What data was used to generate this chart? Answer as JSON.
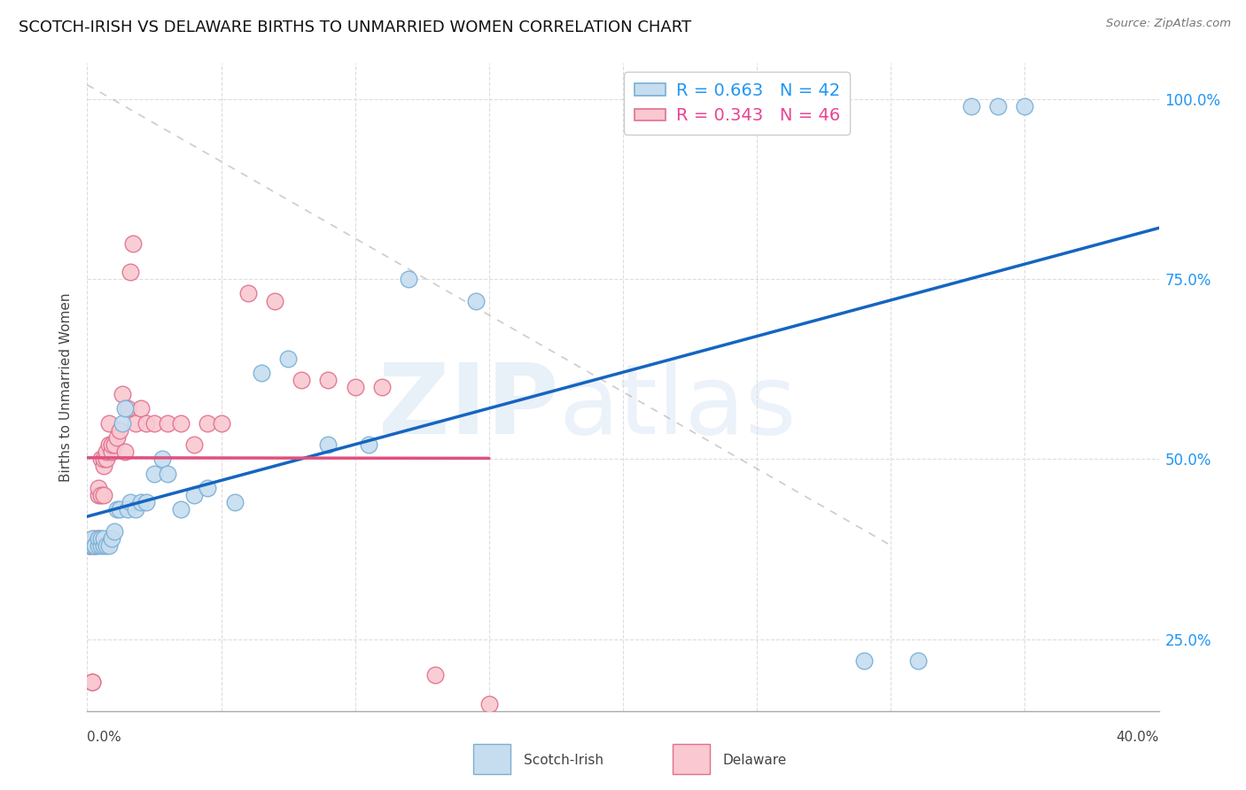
{
  "title": "SCOTCH-IRISH VS DELAWARE BIRTHS TO UNMARRIED WOMEN CORRELATION CHART",
  "source": "Source: ZipAtlas.com",
  "ylabel": "Births to Unmarried Women",
  "xlim": [
    0.0,
    0.4
  ],
  "ylim": [
    0.15,
    1.05
  ],
  "yticks": [
    0.25,
    0.5,
    0.75,
    1.0
  ],
  "ytick_labels": [
    "25.0%",
    "50.0%",
    "75.0%",
    "100.0%"
  ],
  "xticks": [
    0.0,
    0.05,
    0.1,
    0.15,
    0.2,
    0.25,
    0.3,
    0.35,
    0.4
  ],
  "legend_blue_r": "R = 0.663",
  "legend_blue_n": "N = 42",
  "legend_pink_r": "R = 0.343",
  "legend_pink_n": "N = 46",
  "legend_label_blue": "Scotch-Irish",
  "legend_label_pink": "Delaware",
  "blue_face": "#c6ddf0",
  "blue_edge": "#7aafd4",
  "blue_line": "#1565C0",
  "pink_face": "#f9c8d0",
  "pink_edge": "#e07090",
  "pink_line": "#e05080",
  "grid_color": "#dddddd",
  "scotch_irish_x": [
    0.001,
    0.002,
    0.002,
    0.003,
    0.003,
    0.004,
    0.004,
    0.005,
    0.005,
    0.006,
    0.006,
    0.007,
    0.008,
    0.009,
    0.01,
    0.011,
    0.012,
    0.013,
    0.014,
    0.015,
    0.016,
    0.018,
    0.02,
    0.022,
    0.025,
    0.028,
    0.03,
    0.035,
    0.04,
    0.045,
    0.055,
    0.065,
    0.075,
    0.09,
    0.105,
    0.12,
    0.145,
    0.29,
    0.31,
    0.33,
    0.34,
    0.35
  ],
  "scotch_irish_y": [
    0.38,
    0.38,
    0.39,
    0.38,
    0.38,
    0.38,
    0.39,
    0.38,
    0.39,
    0.38,
    0.39,
    0.38,
    0.38,
    0.39,
    0.4,
    0.43,
    0.43,
    0.55,
    0.57,
    0.43,
    0.44,
    0.43,
    0.44,
    0.44,
    0.48,
    0.5,
    0.48,
    0.43,
    0.45,
    0.46,
    0.44,
    0.62,
    0.64,
    0.52,
    0.52,
    0.75,
    0.72,
    0.22,
    0.22,
    0.99,
    0.99,
    0.99
  ],
  "delaware_x": [
    0.001,
    0.001,
    0.002,
    0.002,
    0.003,
    0.003,
    0.003,
    0.004,
    0.004,
    0.004,
    0.005,
    0.005,
    0.006,
    0.006,
    0.006,
    0.007,
    0.007,
    0.008,
    0.008,
    0.009,
    0.009,
    0.01,
    0.011,
    0.012,
    0.013,
    0.014,
    0.015,
    0.016,
    0.017,
    0.018,
    0.02,
    0.022,
    0.025,
    0.03,
    0.035,
    0.04,
    0.045,
    0.05,
    0.06,
    0.07,
    0.08,
    0.09,
    0.1,
    0.11,
    0.13,
    0.15
  ],
  "delaware_y": [
    0.38,
    0.38,
    0.19,
    0.19,
    0.38,
    0.38,
    0.39,
    0.39,
    0.45,
    0.46,
    0.45,
    0.5,
    0.45,
    0.49,
    0.5,
    0.5,
    0.51,
    0.52,
    0.55,
    0.51,
    0.52,
    0.52,
    0.53,
    0.54,
    0.59,
    0.51,
    0.57,
    0.76,
    0.8,
    0.55,
    0.57,
    0.55,
    0.55,
    0.55,
    0.55,
    0.52,
    0.55,
    0.55,
    0.73,
    0.72,
    0.61,
    0.61,
    0.6,
    0.6,
    0.2,
    0.16
  ]
}
